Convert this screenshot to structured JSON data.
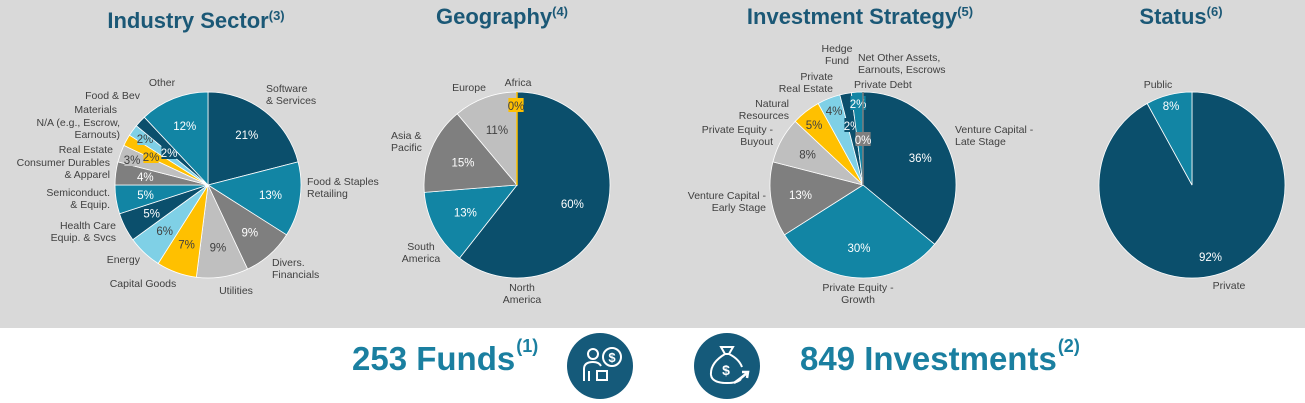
{
  "colors": {
    "navy": "#0b4f6c",
    "teal": "#1285a4",
    "grey": "#7f7f7f",
    "lightgrey": "#bfbfbf",
    "skyblue": "#7fd0e6",
    "yellow": "#ffc000",
    "panel": "#d9d9d9",
    "title": "#1b5876",
    "accent": "#1a7fa0"
  },
  "chart_data": [
    {
      "type": "pie",
      "title": "Industry Sector",
      "title_note": "(3)",
      "slices": [
        {
          "label": "Software & Services",
          "value": 21,
          "pct": "21%",
          "color": "navy"
        },
        {
          "label": "Food & Staples Retailing",
          "value": 13,
          "pct": "13%",
          "color": "teal"
        },
        {
          "label": "Divers. Financials",
          "value": 9,
          "pct": "9%",
          "color": "grey"
        },
        {
          "label": "Utilities",
          "value": 9,
          "pct": "9%",
          "color": "lightgrey"
        },
        {
          "label": "Capital Goods",
          "value": 7,
          "pct": "7%",
          "color": "yellow"
        },
        {
          "label": "Energy",
          "value": 6,
          "pct": "6%",
          "color": "skyblue"
        },
        {
          "label": "Health Care Equip. & Svcs",
          "value": 5,
          "pct": "5%",
          "color": "navy"
        },
        {
          "label": "Semiconduct. & Equip.",
          "value": 5,
          "pct": "5%",
          "color": "teal"
        },
        {
          "label": "Consumer Durables & Apparel",
          "value": 4,
          "pct": "4%",
          "color": "grey"
        },
        {
          "label": "Real Estate",
          "value": 3,
          "pct": "3%",
          "color": "lightgrey"
        },
        {
          "label": "N/A (e.g., Escrow, Earnouts)",
          "value": 2,
          "pct": "2%",
          "color": "yellow"
        },
        {
          "label": "Materials",
          "value": 2,
          "pct": "2%",
          "color": "skyblue"
        },
        {
          "label": "Food & Bev",
          "value": 2,
          "pct": "2%",
          "color": "navy"
        },
        {
          "label": "Other",
          "value": 12,
          "pct": "12%",
          "color": "teal"
        }
      ]
    },
    {
      "type": "pie",
      "title": "Geography",
      "title_note": "(4)",
      "slices": [
        {
          "label": "North America",
          "value": 60,
          "pct": "60%",
          "color": "navy"
        },
        {
          "label": "South America",
          "value": 13,
          "pct": "13%",
          "color": "teal"
        },
        {
          "label": "Asia & Pacific",
          "value": 15,
          "pct": "15%",
          "color": "grey"
        },
        {
          "label": "Europe",
          "value": 11,
          "pct": "11%",
          "color": "lightgrey"
        },
        {
          "label": "Africa",
          "value": 0,
          "pct": "0%",
          "color": "yellow"
        }
      ]
    },
    {
      "type": "pie",
      "title": "Investment Strategy",
      "title_note": "(5)",
      "slices": [
        {
          "label": "Venture Capital - Late Stage",
          "value": 36,
          "pct": "36%",
          "color": "navy"
        },
        {
          "label": "Private Equity - Growth",
          "value": 30,
          "pct": "30%",
          "color": "teal"
        },
        {
          "label": "Venture Capital - Early Stage",
          "value": 13,
          "pct": "13%",
          "color": "grey"
        },
        {
          "label": "Private Equity - Buyout",
          "value": 8,
          "pct": "8%",
          "color": "lightgrey"
        },
        {
          "label": "Natural Resources",
          "value": 5,
          "pct": "5%",
          "color": "yellow"
        },
        {
          "label": "Private Real Estate",
          "value": 4,
          "pct": "4%",
          "color": "skyblue"
        },
        {
          "label": "Hedge Fund",
          "value": 2,
          "pct": "2%",
          "color": "navy"
        },
        {
          "label": "Net Other Assets, Earnouts, Escrows",
          "value": 2,
          "pct": "2%",
          "color": "teal"
        },
        {
          "label": "Private Debt",
          "value": 0,
          "pct": "0%",
          "color": "grey"
        }
      ]
    },
    {
      "type": "pie",
      "title": "Status",
      "title_note": "(6)",
      "slices": [
        {
          "label": "Private",
          "value": 92,
          "pct": "92%",
          "color": "navy"
        },
        {
          "label": "Public",
          "value": 8,
          "pct": "8%",
          "color": "teal"
        }
      ]
    }
  ],
  "summary": {
    "funds_text": "253 Funds",
    "funds_note": "(1)",
    "funds_icon": "person-dollar-icon",
    "investments_text": "849 Investments",
    "investments_note": "(2)",
    "investments_icon": "money-bag-growth-icon"
  }
}
